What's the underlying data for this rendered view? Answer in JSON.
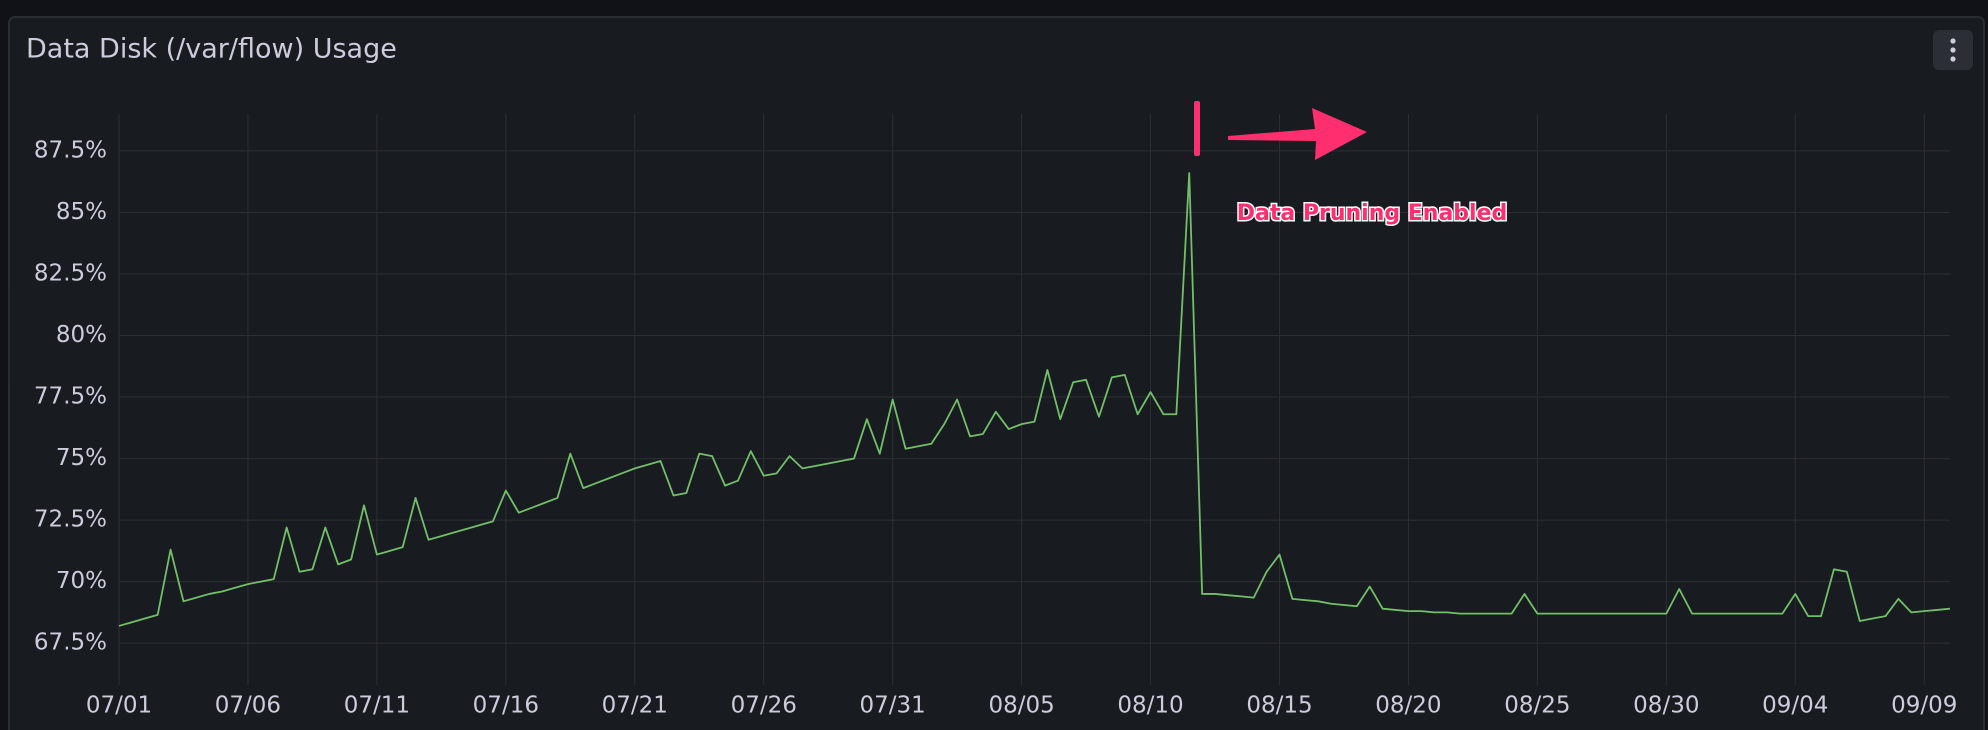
{
  "chart_data": {
    "type": "line",
    "title": "Data Disk (/var/flow) Usage",
    "annotation": "Data Pruning Enabled",
    "color": "#73bf69",
    "grid": true,
    "ylim": [
      65.8,
      89
    ],
    "yticks": [
      {
        "value": 67.5,
        "label": "67.5%"
      },
      {
        "value": 70,
        "label": "70%"
      },
      {
        "value": 72.5,
        "label": "72.5%"
      },
      {
        "value": 75,
        "label": "75%"
      },
      {
        "value": 77.5,
        "label": "77.5%"
      },
      {
        "value": 80,
        "label": "80%"
      },
      {
        "value": 82.5,
        "label": "82.5%"
      },
      {
        "value": 85,
        "label": "85%"
      },
      {
        "value": 87.5,
        "label": "87.5%"
      }
    ],
    "categories": [
      "07/01",
      null,
      null,
      null,
      null,
      null,
      null,
      null,
      null,
      null,
      "07/06",
      null,
      null,
      null,
      null,
      null,
      null,
      null,
      null,
      null,
      "07/11",
      null,
      null,
      null,
      null,
      null,
      null,
      null,
      null,
      null,
      "07/16",
      null,
      null,
      null,
      null,
      null,
      null,
      null,
      null,
      null,
      "07/21",
      null,
      null,
      null,
      null,
      null,
      null,
      null,
      null,
      null,
      "07/26",
      null,
      null,
      null,
      null,
      null,
      null,
      null,
      null,
      null,
      "07/31",
      null,
      null,
      null,
      null,
      null,
      null,
      null,
      null,
      null,
      "08/05",
      null,
      null,
      null,
      null,
      null,
      null,
      null,
      null,
      null,
      "08/10",
      null,
      null,
      null,
      null,
      null,
      null,
      null,
      null,
      null,
      "08/15",
      null,
      null,
      null,
      null,
      null,
      null,
      null,
      null,
      null,
      "08/20",
      null,
      null,
      null,
      null,
      null,
      null,
      null,
      null,
      null,
      "08/25",
      null,
      null,
      null,
      null,
      null,
      null,
      null,
      null,
      null,
      "08/30",
      null,
      null,
      null,
      null,
      null,
      null,
      null,
      null,
      null,
      "09/04",
      null,
      null,
      null,
      null,
      null,
      null,
      null,
      null,
      null,
      "09/09",
      null,
      null
    ],
    "values": [
      68.2,
      68.35,
      68.5,
      68.65,
      71.3,
      69.2,
      69.35,
      69.5,
      69.6,
      69.75,
      69.9,
      70,
      70.1,
      72.2,
      70.4,
      70.5,
      72.2,
      70.7,
      70.9,
      73.1,
      71.1,
      71.25,
      71.4,
      73.4,
      71.7,
      71.85,
      72,
      72.15,
      72.3,
      72.45,
      73.7,
      72.8,
      73,
      73.2,
      73.4,
      75.2,
      73.8,
      74,
      74.2,
      74.4,
      74.6,
      74.75,
      74.9,
      73.5,
      73.6,
      75.2,
      75.1,
      73.9,
      74.1,
      75.3,
      74.3,
      74.4,
      75.1,
      74.6,
      74.7,
      74.8,
      74.9,
      75,
      76.6,
      75.2,
      77.4,
      75.4,
      75.5,
      75.6,
      76.4,
      77.4,
      75.9,
      76,
      76.9,
      76.2,
      76.4,
      76.5,
      78.6,
      76.6,
      78.1,
      78.2,
      76.7,
      78.3,
      78.4,
      76.8,
      77.7,
      76.8,
      76.8,
      86.6,
      69.5,
      69.5,
      69.45,
      69.4,
      69.35,
      70.4,
      71.1,
      69.3,
      69.25,
      69.2,
      69.1,
      69.05,
      69,
      69.8,
      68.9,
      68.85,
      68.8,
      68.8,
      68.75,
      68.75,
      68.7,
      68.7,
      68.7,
      68.7,
      68.7,
      69.5,
      68.7,
      68.7,
      68.7,
      68.7,
      68.7,
      68.7,
      68.7,
      68.7,
      68.7,
      68.7,
      68.7,
      69.7,
      68.7,
      68.7,
      68.7,
      68.7,
      68.7,
      68.7,
      68.7,
      68.7,
      69.5,
      68.6,
      68.6,
      70.5,
      70.4,
      68.4,
      68.5,
      68.6,
      69.3,
      68.75,
      68.8,
      68.85,
      68.9
    ]
  }
}
